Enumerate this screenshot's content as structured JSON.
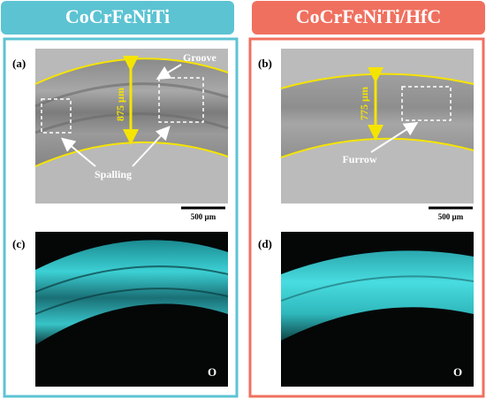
{
  "panels": [
    {
      "header": "CoCrFeNiTi",
      "top_label": "(a)",
      "groove": "Groove",
      "width": "875 µm",
      "damage": "Spalling",
      "scale_bar": "500 µm",
      "bottom_label": "(c)",
      "element": "O"
    },
    {
      "header": "CoCrFeNiTi/HfC",
      "top_label": "(b)",
      "width": "775 µm",
      "damage": "Furrow",
      "scale_bar": "500 µm",
      "bottom_label": "(d)",
      "element": "O"
    }
  ]
}
